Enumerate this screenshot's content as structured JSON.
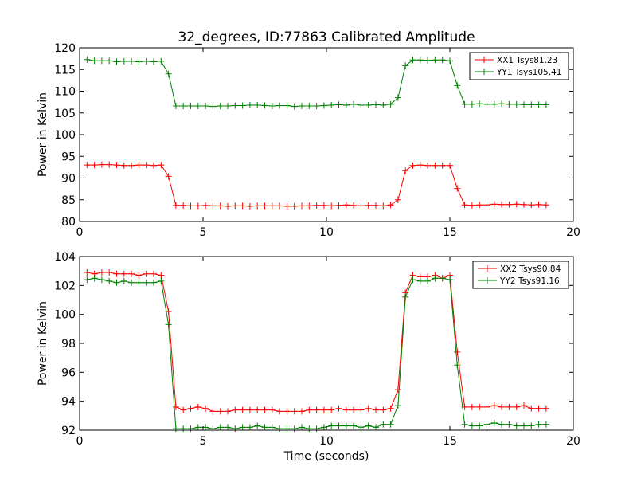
{
  "chart_data": [
    {
      "type": "line",
      "title": "32_degrees, ID:77863 Calibrated Amplitude",
      "xlabel": "",
      "ylabel": "Power in Kelvin",
      "xlim": [
        0,
        20
      ],
      "ylim": [
        80,
        120
      ],
      "xticks": [
        0,
        5,
        10,
        15,
        20
      ],
      "yticks": [
        80,
        85,
        90,
        95,
        100,
        105,
        110,
        115,
        120
      ],
      "grid": false,
      "legend": "top-right",
      "x": [
        0.3,
        0.6,
        0.9,
        1.2,
        1.5,
        1.8,
        2.1,
        2.4,
        2.7,
        3.0,
        3.3,
        3.6,
        3.9,
        4.2,
        4.5,
        4.8,
        5.1,
        5.4,
        5.7,
        6.0,
        6.3,
        6.6,
        6.9,
        7.2,
        7.5,
        7.8,
        8.1,
        8.4,
        8.7,
        9.0,
        9.3,
        9.6,
        9.9,
        10.2,
        10.5,
        10.8,
        11.1,
        11.4,
        11.7,
        12.0,
        12.3,
        12.6,
        12.9,
        13.2,
        13.5,
        13.8,
        14.1,
        14.4,
        14.7,
        15.0,
        15.3,
        15.6,
        15.9,
        16.2,
        16.5,
        16.8,
        17.1,
        17.4,
        17.7,
        18.0,
        18.3,
        18.6,
        18.9
      ],
      "series": [
        {
          "name": "XX1 Tsys81.23",
          "color": "#ff0000",
          "values": [
            93.0,
            93.0,
            93.1,
            93.1,
            93.0,
            92.9,
            92.9,
            93.0,
            93.0,
            92.9,
            93.0,
            90.4,
            83.7,
            83.7,
            83.6,
            83.6,
            83.7,
            83.6,
            83.6,
            83.5,
            83.6,
            83.6,
            83.5,
            83.6,
            83.6,
            83.6,
            83.6,
            83.5,
            83.5,
            83.6,
            83.6,
            83.7,
            83.7,
            83.6,
            83.7,
            83.8,
            83.7,
            83.6,
            83.7,
            83.7,
            83.6,
            83.8,
            85.0,
            91.7,
            92.9,
            93.0,
            92.9,
            92.9,
            92.9,
            92.9,
            87.6,
            83.8,
            83.7,
            83.8,
            83.8,
            84.0,
            83.9,
            83.9,
            84.0,
            83.9,
            83.8,
            83.9,
            83.8
          ]
        },
        {
          "name": "YY1 Tsys105.41",
          "color": "#008000",
          "values": [
            117.3,
            117.0,
            117.0,
            117.0,
            116.8,
            116.9,
            116.9,
            116.8,
            116.9,
            116.8,
            116.9,
            114.0,
            106.6,
            106.6,
            106.6,
            106.6,
            106.6,
            106.5,
            106.6,
            106.6,
            106.7,
            106.7,
            106.8,
            106.8,
            106.7,
            106.6,
            106.7,
            106.7,
            106.5,
            106.6,
            106.6,
            106.6,
            106.7,
            106.8,
            106.9,
            106.8,
            107.0,
            106.8,
            106.8,
            106.9,
            106.8,
            107.0,
            108.5,
            115.9,
            117.2,
            117.2,
            117.1,
            117.2,
            117.2,
            117.0,
            111.3,
            107.0,
            107.0,
            107.1,
            107.0,
            107.0,
            107.1,
            107.0,
            107.0,
            106.9,
            106.9,
            106.9,
            106.9
          ]
        }
      ]
    },
    {
      "type": "line",
      "title": "",
      "xlabel": "Time (seconds)",
      "ylabel": "Power in Kelvin",
      "xlim": [
        0,
        20
      ],
      "ylim": [
        92,
        104
      ],
      "xticks": [
        0,
        5,
        10,
        15,
        20
      ],
      "yticks": [
        92,
        94,
        96,
        98,
        100,
        102,
        104
      ],
      "grid": false,
      "legend": "top-right",
      "x": [
        0.3,
        0.6,
        0.9,
        1.2,
        1.5,
        1.8,
        2.1,
        2.4,
        2.7,
        3.0,
        3.3,
        3.6,
        3.9,
        4.2,
        4.5,
        4.8,
        5.1,
        5.4,
        5.7,
        6.0,
        6.3,
        6.6,
        6.9,
        7.2,
        7.5,
        7.8,
        8.1,
        8.4,
        8.7,
        9.0,
        9.3,
        9.6,
        9.9,
        10.2,
        10.5,
        10.8,
        11.1,
        11.4,
        11.7,
        12.0,
        12.3,
        12.6,
        12.9,
        13.2,
        13.5,
        13.8,
        14.1,
        14.4,
        14.7,
        15.0,
        15.3,
        15.6,
        15.9,
        16.2,
        16.5,
        16.8,
        17.1,
        17.4,
        17.7,
        18.0,
        18.3,
        18.6,
        18.9
      ],
      "series": [
        {
          "name": "XX2 Tsys90.84",
          "color": "#ff0000",
          "values": [
            102.9,
            102.8,
            102.9,
            102.9,
            102.8,
            102.8,
            102.8,
            102.7,
            102.8,
            102.8,
            102.7,
            100.2,
            93.6,
            93.4,
            93.5,
            93.6,
            93.5,
            93.3,
            93.3,
            93.3,
            93.4,
            93.4,
            93.4,
            93.4,
            93.4,
            93.4,
            93.3,
            93.3,
            93.3,
            93.3,
            93.4,
            93.4,
            93.4,
            93.4,
            93.5,
            93.4,
            93.4,
            93.4,
            93.5,
            93.4,
            93.4,
            93.5,
            94.8,
            101.5,
            102.7,
            102.6,
            102.6,
            102.7,
            102.5,
            102.7,
            97.4,
            93.6,
            93.6,
            93.6,
            93.6,
            93.7,
            93.6,
            93.6,
            93.6,
            93.7,
            93.5,
            93.5,
            93.5
          ]
        },
        {
          "name": "YY2 Tsys91.16",
          "color": "#008000",
          "values": [
            102.4,
            102.5,
            102.4,
            102.3,
            102.2,
            102.3,
            102.2,
            102.2,
            102.2,
            102.2,
            102.3,
            99.3,
            92.1,
            92.1,
            92.1,
            92.2,
            92.2,
            92.1,
            92.2,
            92.2,
            92.1,
            92.2,
            92.2,
            92.3,
            92.2,
            92.2,
            92.1,
            92.1,
            92.1,
            92.2,
            92.1,
            92.1,
            92.2,
            92.3,
            92.3,
            92.3,
            92.3,
            92.2,
            92.3,
            92.2,
            92.4,
            92.4,
            93.7,
            101.2,
            102.4,
            102.3,
            102.3,
            102.5,
            102.5,
            102.4,
            96.5,
            92.4,
            92.3,
            92.3,
            92.4,
            92.5,
            92.4,
            92.4,
            92.3,
            92.3,
            92.3,
            92.4,
            92.4
          ]
        }
      ]
    }
  ]
}
